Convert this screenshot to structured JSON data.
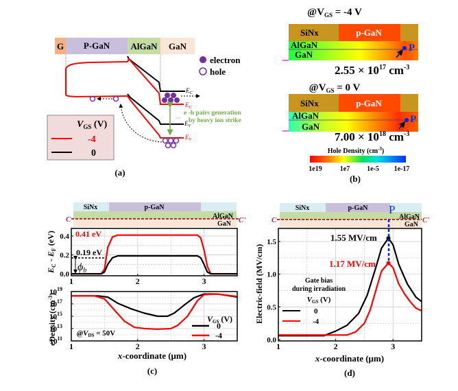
{
  "panel_a": {
    "caption": "(a)",
    "layers": [
      "G",
      "P-GaN",
      "AlGaN",
      "GaN"
    ],
    "legend_markers": [
      {
        "label": "electron",
        "icon": "filled-circle"
      },
      {
        "label": "hole",
        "icon": "open-circle"
      }
    ],
    "band_labels": {
      "ec": "E",
      "ec_sub": "C",
      "ev": "E",
      "ev_sub": "V"
    },
    "annotation_line1": "e -h  pairs generation",
    "annotation_line2": "by heavy ion strike",
    "legend_title": "V",
    "legend_title_sub": "GS",
    "legend_title_unit": " (V)",
    "legend_entries": [
      {
        "label": "-4",
        "color": "#ff0000"
      },
      {
        "label": "0",
        "color": "#000000"
      }
    ],
    "colors": {
      "gate": "#f4b183",
      "pgan": "#c9bfdc",
      "algan": "#c5dca4",
      "gan": "#fbe5d6",
      "legend_bg": "#f2dcdb",
      "carrier": "#7030a0",
      "annotation": "#70ad47"
    }
  },
  "panel_b": {
    "caption": "(b)",
    "maps": [
      {
        "title_prefix": "@V",
        "title_sub": "GS",
        "title_suffix": " = -4 V",
        "value": "2.55 × 10",
        "exp": "17",
        "unit": " cm",
        "unit_exp": "-3"
      },
      {
        "title_prefix": "@V",
        "title_sub": "GS",
        "title_suffix": " = 0 V",
        "value": "7.00 × 10",
        "exp": "18",
        "unit": " cm",
        "unit_exp": "-3"
      }
    ],
    "layer_labels": [
      "SiNx",
      "p-GaN",
      "AlGaN",
      "GaN"
    ],
    "point_label": "P",
    "colorbar_title": "Hole Density (cm",
    "colorbar_title_exp": "-3",
    "colorbar_title_end": ")",
    "colorbar_ticks": [
      "1e19",
      "1e7",
      "1e-5",
      "1e-17"
    ]
  },
  "panel_c": {
    "caption": "(c)",
    "strip_labels": [
      "SiNx",
      "p-GaN",
      "AlGaN",
      "GaN"
    ],
    "cut_start": "C",
    "cut_end": "C'",
    "top_annotations": {
      "red_value": "0.41 eV",
      "black_value": "0.19 eV",
      "phi": "ϕ",
      "phi_sub": "b"
    },
    "bottom_annotation": "@V",
    "bottom_annotation_sub": "DS",
    "bottom_annotation_end": " = 50V",
    "legend_title": "V",
    "legend_title_sub": "GS",
    "legend_title_unit": " (V)",
    "legend_entries": [
      "0",
      "-4"
    ],
    "xlabel_italic": "x",
    "xlabel": "-coordinate  (μm)"
  },
  "panel_d": {
    "caption": "(d)",
    "strip_labels": [
      "SiNx",
      "p-GaN",
      "AlGaN",
      "GaN"
    ],
    "cut_start": "C",
    "cut_end": "C'",
    "point_label": "P",
    "peak_black": "1.55 MV/cm",
    "peak_red": "1.17 MV/cm",
    "legend_line1": "Gate bias",
    "legend_line2": "during irradiation",
    "legend_title": "V",
    "legend_title_sub": "GS",
    "legend_title_unit": " (V)",
    "legend_entries": [
      "0",
      "-4"
    ],
    "xlabel_italic": "x",
    "xlabel": "-coordinate (μm)"
  },
  "chart_data": [
    {
      "type": "line",
      "title": "",
      "xlabel": "x-coordinate (μm)",
      "ylabel": "E_C - E_F (eV)",
      "xlim": [
        1,
        3.5
      ],
      "ylim": [
        -0.02,
        0.48
      ],
      "xticks": [
        "1",
        "2",
        "3"
      ],
      "yticks": [
        "0.0",
        "0.2",
        "0.4"
      ],
      "grid": true,
      "series": [
        {
          "name": "-4",
          "color": "#ff0000",
          "x": [
            1.0,
            1.45,
            1.5,
            1.55,
            1.62,
            1.7,
            2.9,
            2.95,
            3.0,
            3.05,
            3.1,
            3.5
          ],
          "y": [
            0.0,
            0.0,
            0.05,
            0.28,
            0.39,
            0.41,
            0.41,
            0.38,
            0.25,
            0.08,
            0.0,
            0.0
          ]
        },
        {
          "name": "0",
          "color": "#000000",
          "x": [
            1.0,
            1.45,
            1.5,
            1.55,
            1.62,
            1.7,
            2.9,
            2.95,
            3.0,
            3.05,
            3.1,
            3.5
          ],
          "y": [
            0.0,
            0.0,
            0.02,
            0.1,
            0.17,
            0.19,
            0.19,
            0.17,
            0.1,
            0.02,
            0.0,
            0.0
          ]
        }
      ]
    },
    {
      "type": "line",
      "title": "",
      "xlabel": "x-coordinate (μm)",
      "ylabel": "eDensity (cm^-3)",
      "yscale": "log",
      "xlim": [
        1,
        3.5
      ],
      "ylim": [
        11,
        19
      ],
      "xticks": [
        "1",
        "2",
        "3"
      ],
      "yticks": [
        "10^11",
        "10^13",
        "10^15",
        "10^17",
        "10^19"
      ],
      "legend": "right",
      "grid": true,
      "series": [
        {
          "name": "0",
          "color": "#000000",
          "x": [
            1.0,
            1.4,
            1.55,
            1.7,
            1.9,
            2.1,
            2.3,
            2.45,
            2.55,
            2.7,
            2.85,
            3.0,
            3.2,
            3.5
          ],
          "y": [
            18.3,
            18.3,
            18.1,
            17.1,
            16.2,
            15.5,
            15.0,
            15.0,
            15.5,
            16.8,
            18.0,
            18.6,
            18.6,
            18.1
          ]
        },
        {
          "name": "-4",
          "color": "#ff0000",
          "x": [
            1.0,
            1.35,
            1.5,
            1.65,
            1.8,
            1.95,
            2.1,
            2.3,
            2.5,
            2.6,
            2.75,
            2.9,
            3.0,
            3.2,
            3.5
          ],
          "y": [
            18.3,
            18.3,
            17.8,
            16.0,
            14.2,
            13.2,
            13.0,
            12.9,
            13.0,
            13.5,
            15.0,
            17.5,
            18.5,
            18.6,
            18.2
          ]
        }
      ]
    },
    {
      "type": "line",
      "title": "",
      "xlabel": "x-coordinate (μm)",
      "ylabel": "Electric-field (MV/cm)",
      "xlim": [
        1,
        3.5
      ],
      "ylim": [
        -0.02,
        1.7
      ],
      "xticks": [
        "1",
        "2",
        "3"
      ],
      "yticks": [
        "0.0",
        "0.5",
        "1.0",
        "1.5"
      ],
      "grid": true,
      "legend": "left",
      "annotations": [
        {
          "text": "1.55 MV/cm",
          "x": 2.92,
          "y": 1.55
        },
        {
          "text": "1.17 MV/cm",
          "x": 2.92,
          "y": 1.17
        }
      ],
      "series": [
        {
          "name": "0",
          "color": "#000000",
          "x": [
            1.0,
            1.8,
            1.85,
            2.0,
            2.2,
            2.4,
            2.55,
            2.7,
            2.8,
            2.92,
            3.0,
            3.1,
            3.25,
            3.4,
            3.5
          ],
          "y": [
            0.06,
            0.06,
            0.08,
            0.13,
            0.22,
            0.4,
            0.68,
            1.1,
            1.4,
            1.55,
            1.45,
            1.15,
            0.85,
            0.65,
            0.58
          ]
        },
        {
          "name": "-4",
          "color": "#ff0000",
          "x": [
            1.0,
            2.0,
            2.2,
            2.35,
            2.5,
            2.6,
            2.7,
            2.8,
            2.92,
            3.0,
            3.1,
            3.2,
            3.3,
            3.4,
            3.5
          ],
          "y": [
            0.07,
            0.07,
            0.07,
            0.12,
            0.25,
            0.45,
            0.75,
            1.05,
            1.17,
            1.1,
            0.85,
            0.7,
            0.58,
            0.48,
            0.44
          ]
        }
      ]
    }
  ]
}
